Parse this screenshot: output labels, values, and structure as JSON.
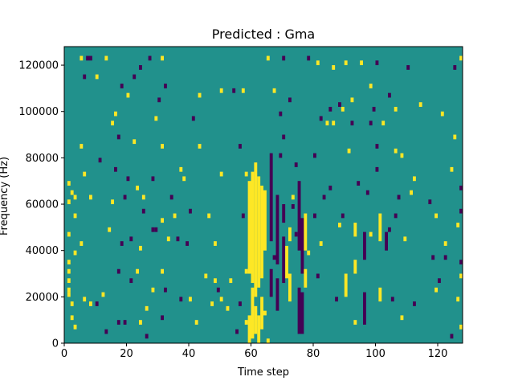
{
  "chart_data": {
    "type": "heatmap",
    "title": "Predicted : Gma",
    "xlabel": "Time step",
    "ylabel": "Frequency (Hz)",
    "xlim": [
      0,
      128
    ],
    "ylim": [
      0,
      128000
    ],
    "x_ticks": [
      0,
      20,
      40,
      60,
      80,
      100,
      120
    ],
    "y_ticks": [
      0,
      20000,
      40000,
      60000,
      80000,
      100000,
      120000
    ],
    "x_tick_labels": [
      "0",
      "20",
      "40",
      "60",
      "80",
      "100",
      "120"
    ],
    "y_tick_labels": [
      "0",
      "20000",
      "40000",
      "60000",
      "80000",
      "100000",
      "120000"
    ],
    "grid": false,
    "colormap": {
      "background": "#21918c",
      "high": "#fde725",
      "low": "#440154"
    },
    "cell_height": 2000,
    "dense_columns": [
      {
        "x": 59,
        "level": "high",
        "ranges": [
          [
            0,
            12000
          ],
          [
            30000,
            70000
          ]
        ]
      },
      {
        "x": 60,
        "level": "high",
        "ranges": [
          [
            2000,
            24000
          ],
          [
            26000,
            74000
          ]
        ]
      },
      {
        "x": 61,
        "level": "high",
        "ranges": [
          [
            4000,
            16000
          ],
          [
            20000,
            78000
          ]
        ]
      },
      {
        "x": 62,
        "level": "high",
        "ranges": [
          [
            0,
            12000
          ],
          [
            24000,
            72000
          ]
        ]
      },
      {
        "x": 63,
        "level": "high",
        "ranges": [
          [
            6000,
            20000
          ],
          [
            28000,
            68000
          ]
        ]
      },
      {
        "x": 64,
        "level": "high",
        "ranges": [
          [
            12000,
            14000
          ],
          [
            40000,
            66000
          ]
        ]
      },
      {
        "x": 66,
        "level": "low",
        "ranges": [
          [
            20000,
            32000
          ],
          [
            44000,
            82000
          ]
        ]
      },
      {
        "x": 68,
        "level": "low",
        "ranges": [
          [
            14000,
            28000
          ],
          [
            34000,
            64000
          ]
        ]
      },
      {
        "x": 70,
        "level": "low",
        "ranges": [
          [
            26000,
            46000
          ],
          [
            52000,
            60000
          ]
        ]
      },
      {
        "x": 71,
        "level": "high",
        "ranges": [
          [
            28000,
            42000
          ]
        ]
      },
      {
        "x": 72,
        "level": "high",
        "ranges": [
          [
            18000,
            30000
          ],
          [
            44000,
            50000
          ]
        ]
      },
      {
        "x": 75,
        "level": "low",
        "ranges": [
          [
            4000,
            24000
          ],
          [
            40000,
            70000
          ]
        ]
      },
      {
        "x": 76,
        "level": "low",
        "ranges": [
          [
            4000,
            22000
          ],
          [
            30000,
            54000
          ]
        ]
      },
      {
        "x": 77,
        "level": "high",
        "ranges": [
          [
            24000,
            32000
          ],
          [
            40000,
            56000
          ]
        ]
      },
      {
        "x": 90,
        "level": "high",
        "ranges": [
          [
            20000,
            30000
          ]
        ]
      },
      {
        "x": 93,
        "level": "high",
        "ranges": [
          [
            30000,
            36000
          ],
          [
            46000,
            52000
          ]
        ]
      },
      {
        "x": 96,
        "level": "low",
        "ranges": [
          [
            8000,
            22000
          ],
          [
            36000,
            48000
          ]
        ]
      },
      {
        "x": 101,
        "level": "high",
        "ranges": [
          [
            18000,
            24000
          ],
          [
            44000,
            56000
          ]
        ]
      },
      {
        "x": 103,
        "level": "low",
        "ranges": [
          [
            40000,
            48000
          ]
        ]
      }
    ],
    "points": [
      [
        1,
        68000,
        "high"
      ],
      [
        1,
        60000,
        "high"
      ],
      [
        1,
        46000,
        "high"
      ],
      [
        1,
        34000,
        "high"
      ],
      [
        1,
        30000,
        "high"
      ],
      [
        1,
        26000,
        "high"
      ],
      [
        1,
        22000,
        "high"
      ],
      [
        1,
        20000,
        "high"
      ],
      [
        2,
        10000,
        "high"
      ],
      [
        2,
        16000,
        "high"
      ],
      [
        2,
        64000,
        "high"
      ],
      [
        3,
        6000,
        "high"
      ],
      [
        3,
        38000,
        "high"
      ],
      [
        3,
        54000,
        "high"
      ],
      [
        3,
        62000,
        "high"
      ],
      [
        5,
        122000,
        "high"
      ],
      [
        5,
        84000,
        "high"
      ],
      [
        5,
        42000,
        "high"
      ],
      [
        6,
        114000,
        "low"
      ],
      [
        6,
        72000,
        "high"
      ],
      [
        6,
        18000,
        "high"
      ],
      [
        7,
        122000,
        "low"
      ],
      [
        8,
        122000,
        "low"
      ],
      [
        8,
        16000,
        "high"
      ],
      [
        8,
        62000,
        "high"
      ],
      [
        10,
        114000,
        "high"
      ],
      [
        10,
        16000,
        "low"
      ],
      [
        11,
        78000,
        "low"
      ],
      [
        12,
        20000,
        "high"
      ],
      [
        13,
        4000,
        "low"
      ],
      [
        13,
        122000,
        "high"
      ],
      [
        14,
        48000,
        "high"
      ],
      [
        15,
        60000,
        "high"
      ],
      [
        15,
        94000,
        "high"
      ],
      [
        16,
        98000,
        "high"
      ],
      [
        16,
        74000,
        "low"
      ],
      [
        17,
        88000,
        "low"
      ],
      [
        17,
        30000,
        "low"
      ],
      [
        17,
        8000,
        "low"
      ],
      [
        18,
        110000,
        "low"
      ],
      [
        18,
        42000,
        "low"
      ],
      [
        19,
        62000,
        "low"
      ],
      [
        19,
        8000,
        "low"
      ],
      [
        20,
        106000,
        "high"
      ],
      [
        20,
        70000,
        "low"
      ],
      [
        21,
        44000,
        "low"
      ],
      [
        21,
        26000,
        "low"
      ],
      [
        22,
        114000,
        "low"
      ],
      [
        22,
        86000,
        "high"
      ],
      [
        23,
        66000,
        "high"
      ],
      [
        23,
        30000,
        "high"
      ],
      [
        24,
        118000,
        "low"
      ],
      [
        24,
        8000,
        "high"
      ],
      [
        24,
        40000,
        "high"
      ],
      [
        25,
        62000,
        "high"
      ],
      [
        25,
        56000,
        "low"
      ],
      [
        26,
        2000,
        "low"
      ],
      [
        26,
        14000,
        "high"
      ],
      [
        27,
        122000,
        "low"
      ],
      [
        28,
        70000,
        "low"
      ],
      [
        28,
        48000,
        "low"
      ],
      [
        28,
        22000,
        "high"
      ],
      [
        29,
        96000,
        "high"
      ],
      [
        29,
        48000,
        "low"
      ],
      [
        30,
        104000,
        "low"
      ],
      [
        31,
        122000,
        "high"
      ],
      [
        31,
        84000,
        "high"
      ],
      [
        31,
        52000,
        "high"
      ],
      [
        31,
        30000,
        "high"
      ],
      [
        31,
        10000,
        "low"
      ],
      [
        32,
        110000,
        "low"
      ],
      [
        32,
        22000,
        "low"
      ],
      [
        33,
        44000,
        "high"
      ],
      [
        34,
        62000,
        "low"
      ],
      [
        35,
        54000,
        "high"
      ],
      [
        36,
        44000,
        "low"
      ],
      [
        37,
        18000,
        "low"
      ],
      [
        37,
        74000,
        "high"
      ],
      [
        38,
        70000,
        "high"
      ],
      [
        39,
        42000,
        "low"
      ],
      [
        40,
        56000,
        "low"
      ],
      [
        40,
        18000,
        "high"
      ],
      [
        41,
        96000,
        "low"
      ],
      [
        42,
        8000,
        "high"
      ],
      [
        43,
        106000,
        "high"
      ],
      [
        43,
        84000,
        "high"
      ],
      [
        45,
        28000,
        "high"
      ],
      [
        46,
        54000,
        "high"
      ],
      [
        47,
        16000,
        "high"
      ],
      [
        48,
        26000,
        "high"
      ],
      [
        48,
        42000,
        "high"
      ],
      [
        49,
        22000,
        "low"
      ],
      [
        50,
        18000,
        "high"
      ],
      [
        50,
        72000,
        "high"
      ],
      [
        50,
        108000,
        "high"
      ],
      [
        52,
        14000,
        "high"
      ],
      [
        53,
        26000,
        "high"
      ],
      [
        54,
        108000,
        "low"
      ],
      [
        55,
        4000,
        "low"
      ],
      [
        56,
        16000,
        "low"
      ],
      [
        56,
        84000,
        "low"
      ],
      [
        57,
        108000,
        "high"
      ],
      [
        57,
        54000,
        "low"
      ],
      [
        58,
        8000,
        "high"
      ],
      [
        58,
        30000,
        "high"
      ],
      [
        58,
        72000,
        "high"
      ],
      [
        65,
        0,
        "high"
      ],
      [
        65,
        122000,
        "high"
      ],
      [
        67,
        108000,
        "high"
      ],
      [
        67,
        36000,
        "low"
      ],
      [
        69,
        80000,
        "low"
      ],
      [
        69,
        98000,
        "low"
      ],
      [
        70,
        122000,
        "low"
      ],
      [
        70,
        88000,
        "low"
      ],
      [
        72,
        104000,
        "low"
      ],
      [
        73,
        62000,
        "high"
      ],
      [
        73,
        58000,
        "low"
      ],
      [
        74,
        76000,
        "low"
      ],
      [
        74,
        46000,
        "low"
      ],
      [
        78,
        122000,
        "low"
      ],
      [
        78,
        38000,
        "high"
      ],
      [
        80,
        80000,
        "low"
      ],
      [
        80,
        54000,
        "low"
      ],
      [
        81,
        28000,
        "low"
      ],
      [
        81,
        120000,
        "high"
      ],
      [
        82,
        96000,
        "low"
      ],
      [
        82,
        42000,
        "high"
      ],
      [
        83,
        62000,
        "low"
      ],
      [
        84,
        94000,
        "high"
      ],
      [
        85,
        66000,
        "low"
      ],
      [
        85,
        100000,
        "low"
      ],
      [
        86,
        94000,
        "high"
      ],
      [
        86,
        118000,
        "high"
      ],
      [
        87,
        18000,
        "low"
      ],
      [
        88,
        102000,
        "low"
      ],
      [
        88,
        50000,
        "high"
      ],
      [
        89,
        100000,
        "high"
      ],
      [
        89,
        54000,
        "low"
      ],
      [
        90,
        120000,
        "high"
      ],
      [
        91,
        82000,
        "high"
      ],
      [
        92,
        94000,
        "low"
      ],
      [
        92,
        104000,
        "high"
      ],
      [
        93,
        8000,
        "high"
      ],
      [
        94,
        68000,
        "low"
      ],
      [
        95,
        120000,
        "high"
      ],
      [
        97,
        64000,
        "low"
      ],
      [
        98,
        46000,
        "high"
      ],
      [
        98,
        110000,
        "high"
      ],
      [
        98,
        94000,
        "low"
      ],
      [
        99,
        100000,
        "low"
      ],
      [
        100,
        120000,
        "low"
      ],
      [
        100,
        74000,
        "low"
      ],
      [
        100,
        84000,
        "low"
      ],
      [
        102,
        94000,
        "high"
      ],
      [
        104,
        106000,
        "low"
      ],
      [
        104,
        48000,
        "low"
      ],
      [
        105,
        18000,
        "low"
      ],
      [
        106,
        100000,
        "high"
      ],
      [
        106,
        82000,
        "high"
      ],
      [
        106,
        54000,
        "low"
      ],
      [
        107,
        62000,
        "low"
      ],
      [
        108,
        10000,
        "high"
      ],
      [
        108,
        80000,
        "high"
      ],
      [
        109,
        44000,
        "high"
      ],
      [
        110,
        118000,
        "low"
      ],
      [
        111,
        64000,
        "high"
      ],
      [
        112,
        70000,
        "high"
      ],
      [
        112,
        16000,
        "low"
      ],
      [
        114,
        102000,
        "high"
      ],
      [
        117,
        60000,
        "low"
      ],
      [
        118,
        36000,
        "low"
      ],
      [
        119,
        22000,
        "high"
      ],
      [
        119,
        54000,
        "high"
      ],
      [
        120,
        26000,
        "low"
      ],
      [
        121,
        98000,
        "high"
      ],
      [
        122,
        36000,
        "low"
      ],
      [
        122,
        42000,
        "high"
      ],
      [
        124,
        2000,
        "low"
      ],
      [
        124,
        74000,
        "high"
      ],
      [
        125,
        88000,
        "high"
      ],
      [
        125,
        118000,
        "low"
      ],
      [
        126,
        18000,
        "high"
      ],
      [
        126,
        50000,
        "high"
      ],
      [
        127,
        6000,
        "high"
      ],
      [
        127,
        56000,
        "low"
      ],
      [
        127,
        122000,
        "high"
      ],
      [
        127,
        66000,
        "low"
      ],
      [
        127,
        34000,
        "low"
      ],
      [
        127,
        28000,
        "high"
      ]
    ]
  }
}
